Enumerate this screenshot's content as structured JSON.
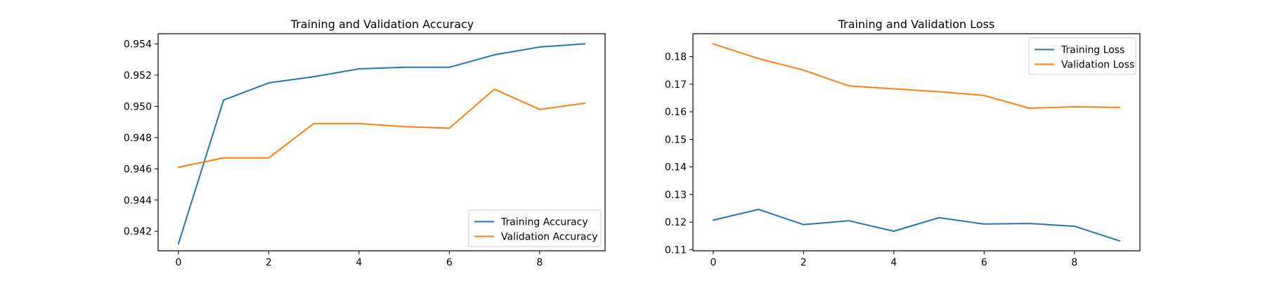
{
  "chart_data": [
    {
      "type": "line",
      "title": "Training and Validation Accuracy",
      "xlabel": "",
      "ylabel": "",
      "xlim": [
        -0.45,
        9.45
      ],
      "ylim": [
        0.94075,
        0.95465
      ],
      "xticks": [
        0,
        2,
        4,
        6,
        8
      ],
      "xtick_labels": [
        "0",
        "2",
        "4",
        "6",
        "8"
      ],
      "yticks": [
        0.942,
        0.944,
        0.946,
        0.948,
        0.95,
        0.952,
        0.954
      ],
      "ytick_labels": [
        "0.942",
        "0.944",
        "0.946",
        "0.948",
        "0.950",
        "0.952",
        "0.954"
      ],
      "grid": false,
      "legend_position": "lower-right",
      "x": [
        0,
        1,
        2,
        3,
        4,
        5,
        6,
        7,
        8,
        9
      ],
      "series": [
        {
          "name": "Training Accuracy",
          "color": "#1f77b4",
          "values": [
            0.9412,
            0.9504,
            0.9515,
            0.9519,
            0.9524,
            0.9525,
            0.9525,
            0.9533,
            0.9538,
            0.954
          ]
        },
        {
          "name": "Validation Accuracy",
          "color": "#ff7f0e",
          "values": [
            0.9461,
            0.9467,
            0.9467,
            0.9489,
            0.9489,
            0.9487,
            0.9486,
            0.9511,
            0.9498,
            0.9502
          ]
        }
      ]
    },
    {
      "type": "line",
      "title": "Training and Validation Loss",
      "xlabel": "",
      "ylabel": "",
      "xlim": [
        -0.45,
        9.45
      ],
      "ylim": [
        0.1096,
        0.1883
      ],
      "xticks": [
        0,
        2,
        4,
        6,
        8
      ],
      "xtick_labels": [
        "0",
        "2",
        "4",
        "6",
        "8"
      ],
      "yticks": [
        0.11,
        0.12,
        0.13,
        0.14,
        0.15,
        0.16,
        0.17,
        0.18
      ],
      "ytick_labels": [
        "0.11",
        "0.12",
        "0.13",
        "0.14",
        "0.15",
        "0.16",
        "0.17",
        "0.18"
      ],
      "grid": false,
      "legend_position": "upper-right",
      "x": [
        0,
        1,
        2,
        3,
        4,
        5,
        6,
        7,
        8,
        9
      ],
      "series": [
        {
          "name": "Training Loss",
          "color": "#1f77b4",
          "values": [
            0.1207,
            0.1246,
            0.1191,
            0.1205,
            0.1167,
            0.1216,
            0.1193,
            0.1195,
            0.1185,
            0.1132
          ]
        },
        {
          "name": "Validation Loss",
          "color": "#ff7f0e",
          "values": [
            0.1846,
            0.1793,
            0.1751,
            0.1694,
            0.1683,
            0.1673,
            0.1659,
            0.1613,
            0.1618,
            0.1616
          ]
        }
      ]
    }
  ]
}
